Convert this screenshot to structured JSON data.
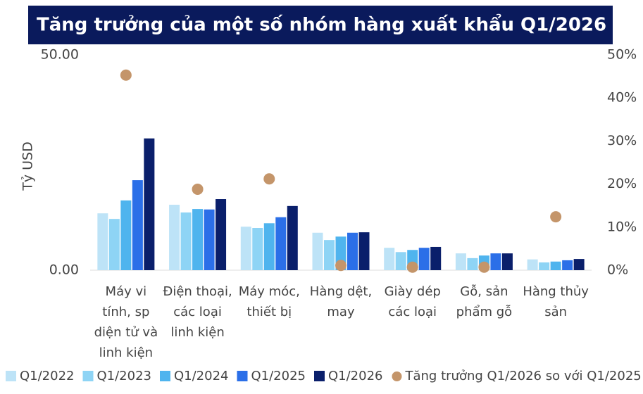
{
  "chart_data": {
    "type": "bar",
    "title": "Tăng trưởng của một số nhóm hàng xuất khẩu Q1/2026",
    "ylabel": "Tỷ USD",
    "categories": [
      [
        "Máy vi",
        "tính, sp",
        "diện tử và",
        "linh kiện"
      ],
      [
        "Điện thoại,",
        "các loại",
        "linh kiện"
      ],
      [
        "Máy móc,",
        "thiết bị"
      ],
      [
        "Hàng dệt,",
        "may"
      ],
      [
        "Giày dép",
        "các loại"
      ],
      [
        "Gỗ, sản",
        "phẩm gỗ"
      ],
      [
        "Hàng thủy",
        "sản"
      ]
    ],
    "series": [
      {
        "name": "Q1/2022",
        "color": "#bde3f7",
        "values": [
          13.2,
          15.2,
          10.1,
          8.7,
          5.2,
          3.9,
          2.5
        ]
      },
      {
        "name": "Q1/2023",
        "color": "#8ed4f5",
        "values": [
          11.9,
          13.4,
          9.8,
          7.0,
          4.2,
          2.8,
          1.8
        ]
      },
      {
        "name": "Q1/2024",
        "color": "#4fb4ee",
        "values": [
          16.2,
          14.2,
          10.9,
          7.8,
          4.7,
          3.4,
          2.0
        ]
      },
      {
        "name": "Q1/2025",
        "color": "#2b6fe8",
        "values": [
          20.9,
          14.1,
          12.3,
          8.7,
          5.2,
          3.9,
          2.3
        ]
      },
      {
        "name": "Q1/2026",
        "color": "#0a1f6b",
        "values": [
          30.6,
          16.5,
          14.9,
          8.8,
          5.4,
          3.9,
          2.6
        ]
      },
      {
        "name": "Tăng trưởng Q1/2026 so với Q1/2025",
        "color": "#c4956a",
        "type": "scatter",
        "axis": "y2",
        "values": [
          45.3,
          18.8,
          21.2,
          1.1,
          0.7,
          0.7,
          12.4
        ]
      }
    ],
    "ylim": [
      0,
      50
    ],
    "yticks": [
      {
        "value": 0,
        "label": "0.00"
      },
      {
        "value": 50,
        "label": "50.00"
      }
    ],
    "y2lim": [
      0,
      50
    ],
    "y2ticks": [
      {
        "value": 0,
        "label": "0%"
      },
      {
        "value": 10,
        "label": "10%"
      },
      {
        "value": 20,
        "label": "20%"
      },
      {
        "value": 30,
        "label": "30%"
      },
      {
        "value": 40,
        "label": "40%"
      },
      {
        "value": 50,
        "label": "50%"
      }
    ],
    "legend": "bottom"
  }
}
